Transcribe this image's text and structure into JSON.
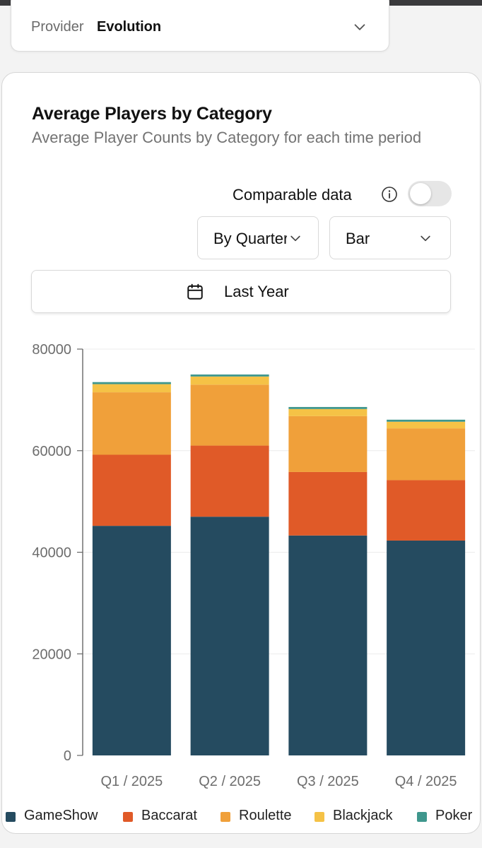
{
  "provider": {
    "label": "Provider",
    "value": "Evolution",
    "icon": "chevron-down-icon"
  },
  "card": {
    "title": "Average Players by Category",
    "subtitle": "Average Player Counts by Category for each time period"
  },
  "controls": {
    "toggle_label": "Comparable data",
    "toggle_on": false,
    "info_icon": "info-icon",
    "period_select": "By Quarter",
    "type_select": "Bar",
    "date_range": "Last Year",
    "calendar_icon": "calendar-icon"
  },
  "colors": {
    "GameShow": "#254b60",
    "Baccarat": "#e05a28",
    "Roulette": "#f0a03a",
    "Blackjack": "#f5c246",
    "Poker": "#3f978d"
  },
  "chart_data": {
    "type": "bar",
    "stacked": true,
    "categories": [
      "Q1 / 2025",
      "Q2 / 2025",
      "Q3 / 2025",
      "Q4 / 2025"
    ],
    "series": [
      {
        "name": "GameShow",
        "values": [
          45200,
          47000,
          43300,
          42300
        ]
      },
      {
        "name": "Baccarat",
        "values": [
          14000,
          14000,
          12500,
          11900
        ]
      },
      {
        "name": "Roulette",
        "values": [
          12300,
          12000,
          11000,
          10200
        ]
      },
      {
        "name": "Blackjack",
        "values": [
          1600,
          1600,
          1400,
          1300
        ]
      },
      {
        "name": "Poker",
        "values": [
          400,
          400,
          400,
          400
        ]
      }
    ],
    "ylim": [
      0,
      80000
    ],
    "yticks": [
      0,
      20000,
      40000,
      60000,
      80000
    ],
    "grid": true,
    "legend": "bottom"
  }
}
